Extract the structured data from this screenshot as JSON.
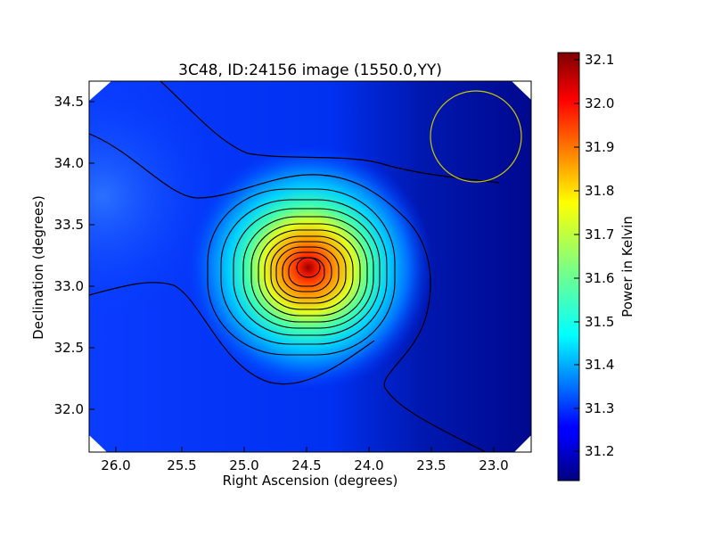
{
  "chart_data": [
    {
      "type": "heatmap",
      "title": "3C48, ID:24156 image (1550.0,YY)",
      "xlabel": "Right Ascension (degrees)",
      "ylabel": "Declination (degrees)",
      "xlim": [
        26.22,
        22.66
      ],
      "ylim": [
        31.65,
        34.67
      ],
      "x_ticks": [
        "26.0",
        "25.5",
        "25.0",
        "24.5",
        "24.0",
        "23.5",
        "23.0"
      ],
      "y_ticks": [
        "32.0",
        "32.5",
        "33.0",
        "33.5",
        "34.0",
        "34.5"
      ],
      "colormap": "jet",
      "grid": false,
      "peak": {
        "ra": 24.44,
        "dec": 33.15,
        "value": 32.11
      },
      "background_value": 31.14,
      "contour_count": 12,
      "beam_circle": {
        "ra": 23.07,
        "dec": 34.22,
        "color": "#c8c800"
      }
    },
    {
      "type": "colorbar",
      "label": "Power in Kelvin",
      "range": [
        31.13,
        32.12
      ],
      "ticks": [
        "31.2",
        "31.3",
        "31.4",
        "31.5",
        "31.6",
        "31.7",
        "31.8",
        "31.9",
        "32.0",
        "32.1"
      ]
    }
  ]
}
